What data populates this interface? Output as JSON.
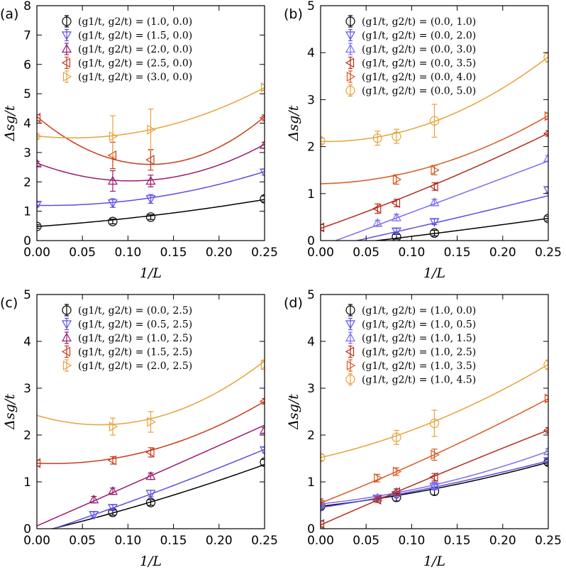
{
  "chart_data": [
    {
      "type": "scatter",
      "panel_label": "(a)",
      "xlabel": "1/L",
      "ylabel": "Δsg/t",
      "xlim": [
        0,
        0.25
      ],
      "ylim": [
        0,
        8
      ],
      "xticks": [
        "0.00",
        "0.05",
        "0.10",
        "0.15",
        "0.20",
        "0.25"
      ],
      "yticks": [
        "0",
        "1",
        "2",
        "3",
        "4",
        "5",
        "6",
        "7",
        "8"
      ],
      "legend_position": "top-left",
      "series": [
        {
          "name": "(g1/t, g2/t) = (1.0, 0.0)",
          "color": "#000000",
          "marker": "circle",
          "points": [
            [
              0.0,
              0.48,
              0.06
            ],
            [
              0.0833,
              0.65,
              0.08
            ],
            [
              0.125,
              0.8,
              0.08
            ],
            [
              0.25,
              1.42,
              0.1
            ]
          ],
          "fit": [
            0.48,
            2.2,
            5.9
          ]
        },
        {
          "name": "(g1/t, g2/t) = (1.5, 0.0)",
          "color": "#5b4fe0",
          "marker": "triangle-down",
          "points": [
            [
              0.0,
              1.23,
              0.08
            ],
            [
              0.0833,
              1.28,
              0.15
            ],
            [
              0.125,
              1.42,
              0.15
            ],
            [
              0.25,
              2.33,
              0.1
            ]
          ],
          "fit": [
            1.2,
            -0.5,
            20.4
          ]
        },
        {
          "name": "(g1/t, g2/t) = (2.0, 0.0)",
          "color": "#9b1a6e",
          "marker": "triangle-up",
          "points": [
            [
              0.0,
              2.62,
              0.08
            ],
            [
              0.0833,
              2.03,
              0.35
            ],
            [
              0.125,
              2.03,
              0.2
            ],
            [
              0.25,
              3.25,
              0.1
            ]
          ],
          "fit": [
            2.64,
            -11.8,
            57.4
          ]
        },
        {
          "name": "(g1/t, g2/t) = (2.5, 0.0)",
          "color": "#c83a1a",
          "marker": "triangle-left",
          "points": [
            [
              0.0,
              4.18,
              0.1
            ],
            [
              0.0833,
              2.9,
              0.45
            ],
            [
              0.125,
              2.75,
              0.35
            ],
            [
              0.25,
              4.18,
              0.1
            ]
          ],
          "fit": [
            4.22,
            -26.0,
            104.0
          ]
        },
        {
          "name": "(g1/t, g2/t) = (3.0, 0.0)",
          "color": "#e8a23a",
          "marker": "triangle-right",
          "points": [
            [
              0.0,
              3.55,
              0.1
            ],
            [
              0.0833,
              3.55,
              0.7
            ],
            [
              0.125,
              3.78,
              0.7
            ],
            [
              0.25,
              5.22,
              0.1
            ]
          ],
          "fit": [
            3.56,
            -3.1,
            38.8
          ]
        }
      ]
    },
    {
      "type": "scatter",
      "panel_label": "(b)",
      "xlabel": "1/L",
      "ylabel": "Δsg/t",
      "xlim": [
        0,
        0.25
      ],
      "ylim": [
        0,
        5
      ],
      "xticks": [
        "0.00",
        "0.05",
        "0.10",
        "0.15",
        "0.20",
        "0.25"
      ],
      "yticks": [
        "0",
        "1",
        "2",
        "3",
        "4",
        "5"
      ],
      "legend_position": "top-left",
      "series": [
        {
          "name": "(g1/t, g2/t) = (0.0, 1.0)",
          "color": "#000000",
          "marker": "circle",
          "points": [
            [
              0.0833,
              0.08,
              0.05
            ],
            [
              0.125,
              0.16,
              0.06
            ],
            [
              0.25,
              0.47,
              0.05
            ]
          ],
          "fit": [
            -0.14,
            2.2,
            1.0
          ]
        },
        {
          "name": "(g1/t, g2/t) = (0.0, 2.0)",
          "color": "#5b4fe0",
          "marker": "triangle-down",
          "points": [
            [
              0.0833,
              0.2,
              0.06
            ],
            [
              0.125,
              0.4,
              0.06
            ],
            [
              0.25,
              1.08,
              0.06
            ]
          ],
          "fit": [
            -0.17,
            4.2,
            1.2
          ]
        },
        {
          "name": "(g1/t, g2/t) = (0.0, 3.0)",
          "color": "#7a6ef0",
          "marker": "triangle-up",
          "points": [
            [
              0.0625,
              0.37,
              0.06
            ],
            [
              0.0833,
              0.49,
              0.07
            ],
            [
              0.125,
              0.81,
              0.07
            ],
            [
              0.25,
              1.75,
              0.06
            ]
          ],
          "fit": [
            -0.12,
            7.2,
            0.2
          ]
        },
        {
          "name": "(g1/t, g2/t) = (0.0, 3.5)",
          "color": "#b52a1a",
          "marker": "triangle-left",
          "points": [
            [
              0.0,
              0.28,
              0.06
            ],
            [
              0.0625,
              0.68,
              0.1
            ],
            [
              0.0833,
              0.8,
              0.08
            ],
            [
              0.125,
              1.15,
              0.08
            ],
            [
              0.25,
              2.28,
              0.06
            ]
          ],
          "fit": [
            0.26,
            6.8,
            5.2
          ]
        },
        {
          "name": "(g1/t, g2/t) = (0.0, 4.0)",
          "color": "#d9581f",
          "marker": "triangle-right",
          "points": [
            [
              0.0833,
              1.3,
              0.1
            ],
            [
              0.125,
              1.5,
              0.1
            ],
            [
              0.25,
              2.65,
              0.06
            ]
          ],
          "fit": [
            1.21,
            0.4,
            21.6
          ]
        },
        {
          "name": "(g1/t, g2/t) = (0.0, 5.0)",
          "color": "#e8a23a",
          "marker": "circle",
          "points": [
            [
              0.0,
              2.12,
              0.06
            ],
            [
              0.0625,
              2.18,
              0.15
            ],
            [
              0.0833,
              2.22,
              0.15
            ],
            [
              0.125,
              2.55,
              0.35
            ],
            [
              0.25,
              3.9,
              0.1
            ]
          ],
          "fit": [
            2.11,
            -0.4,
            30.4
          ]
        }
      ]
    },
    {
      "type": "scatter",
      "panel_label": "(c)",
      "xlabel": "1/L",
      "ylabel": "Δsg/t",
      "xlim": [
        0,
        0.25
      ],
      "ylim": [
        0,
        5
      ],
      "xticks": [
        "0.00",
        "0.05",
        "0.10",
        "0.15",
        "0.20",
        "0.25"
      ],
      "yticks": [
        "0",
        "1",
        "2",
        "3",
        "4",
        "5"
      ],
      "legend_position": "top-left",
      "series": [
        {
          "name": "(g1/t, g2/t) = (0.0, 2.5)",
          "color": "#000000",
          "marker": "circle",
          "points": [
            [
              0.0833,
              0.35,
              0.06
            ],
            [
              0.125,
              0.56,
              0.06
            ],
            [
              0.25,
              1.42,
              0.06
            ]
          ],
          "fit": [
            -0.08,
            4.6,
            4.8
          ]
        },
        {
          "name": "(g1/t, g2/t) = (0.5, 2.5)",
          "color": "#5b4fe0",
          "marker": "triangle-down",
          "points": [
            [
              0.0625,
              0.3,
              0.06
            ],
            [
              0.0833,
              0.45,
              0.06
            ],
            [
              0.125,
              0.75,
              0.07
            ],
            [
              0.25,
              1.68,
              0.06
            ]
          ],
          "fit": [
            -0.12,
            6.5,
            3.0
          ]
        },
        {
          "name": "(g1/t, g2/t) = (1.0, 2.5)",
          "color": "#9b1a6e",
          "marker": "triangle-up",
          "points": [
            [
              0.0625,
              0.62,
              0.07
            ],
            [
              0.0833,
              0.8,
              0.07
            ],
            [
              0.125,
              1.12,
              0.07
            ],
            [
              0.25,
              2.1,
              0.06
            ]
          ],
          "fit": [
            0.06,
            8.5,
            0.4
          ]
        },
        {
          "name": "(g1/t, g2/t) = (1.5, 2.5)",
          "color": "#c83a1a",
          "marker": "triangle-left",
          "points": [
            [
              0.0,
              1.4,
              0.06
            ],
            [
              0.0833,
              1.46,
              0.08
            ],
            [
              0.125,
              1.63,
              0.1
            ],
            [
              0.25,
              2.72,
              0.06
            ]
          ],
          "fit": [
            1.4,
            -0.9,
            24.7
          ]
        },
        {
          "name": "(g1/t, g2/t) = (2.0, 2.5)",
          "color": "#e8a23a",
          "marker": "triangle-right",
          "points": [
            [
              0.0833,
              2.18,
              0.18
            ],
            [
              0.125,
              2.28,
              0.22
            ],
            [
              0.25,
              3.5,
              0.1
            ]
          ],
          "fit": [
            2.42,
            -5.8,
            41.8
          ]
        }
      ]
    },
    {
      "type": "scatter",
      "panel_label": "(d)",
      "xlabel": "1/L",
      "ylabel": "Δsg/t",
      "xlim": [
        0,
        0.25
      ],
      "ylim": [
        0,
        5
      ],
      "xticks": [
        "0.00",
        "0.05",
        "0.10",
        "0.15",
        "0.20",
        "0.25"
      ],
      "yticks": [
        "0",
        "1",
        "2",
        "3",
        "4",
        "5"
      ],
      "legend_position": "top-left",
      "series": [
        {
          "name": "(g1/t, g2/t) = (1.0, 0.0)",
          "color": "#000000",
          "marker": "circle",
          "points": [
            [
              0.0,
              0.48,
              0.06
            ],
            [
              0.0833,
              0.67,
              0.08
            ],
            [
              0.125,
              0.8,
              0.08
            ],
            [
              0.25,
              1.42,
              0.06
            ]
          ],
          "fit": [
            0.48,
            2.2,
            6.2
          ]
        },
        {
          "name": "(g1/t, g2/t) = (1.0, 0.5)",
          "color": "#5b4fe0",
          "marker": "triangle-down",
          "points": [
            [
              0.0,
              0.45,
              0.06
            ],
            [
              0.0625,
              0.65,
              0.06
            ],
            [
              0.0833,
              0.72,
              0.06
            ],
            [
              0.125,
              0.9,
              0.07
            ],
            [
              0.25,
              1.45,
              0.06
            ]
          ],
          "fit": [
            0.45,
            3.0,
            4.0
          ]
        },
        {
          "name": "(g1/t, g2/t) = (1.0, 1.5)",
          "color": "#7a6ef0",
          "marker": "triangle-up",
          "points": [
            [
              0.0,
              0.55,
              0.06
            ],
            [
              0.0625,
              0.66,
              0.06
            ],
            [
              0.0833,
              0.78,
              0.07
            ],
            [
              0.125,
              0.92,
              0.07
            ],
            [
              0.25,
              1.65,
              0.06
            ]
          ],
          "fit": [
            0.53,
            2.0,
            10.0
          ]
        },
        {
          "name": "(g1/t, g2/t) = (1.0, 2.5)",
          "color": "#b52a1a",
          "marker": "triangle-left",
          "points": [
            [
              0.0,
              0.1,
              0.06
            ],
            [
              0.0625,
              0.62,
              0.06
            ],
            [
              0.0833,
              0.78,
              0.07
            ],
            [
              0.125,
              1.1,
              0.08
            ],
            [
              0.25,
              2.1,
              0.06
            ]
          ],
          "fit": [
            0.08,
            8.6,
            -2.0
          ]
        },
        {
          "name": "(g1/t, g2/t) = (1.0, 3.5)",
          "color": "#d9581f",
          "marker": "triangle-right",
          "points": [
            [
              0.0,
              0.58,
              0.06
            ],
            [
              0.0625,
              1.08,
              0.08
            ],
            [
              0.0833,
              1.22,
              0.08
            ],
            [
              0.125,
              1.58,
              0.12
            ],
            [
              0.25,
              2.78,
              0.06
            ]
          ],
          "fit": [
            0.55,
            7.6,
            5.2
          ]
        },
        {
          "name": "(g1/t, g2/t) = (1.0, 4.5)",
          "color": "#e8a23a",
          "marker": "circle",
          "points": [
            [
              0.0,
              1.52,
              0.06
            ],
            [
              0.0833,
              1.95,
              0.15
            ],
            [
              0.125,
              2.25,
              0.28
            ],
            [
              0.25,
              3.5,
              0.1
            ]
          ],
          "fit": [
            1.52,
            4.4,
            14.2
          ]
        }
      ]
    }
  ]
}
